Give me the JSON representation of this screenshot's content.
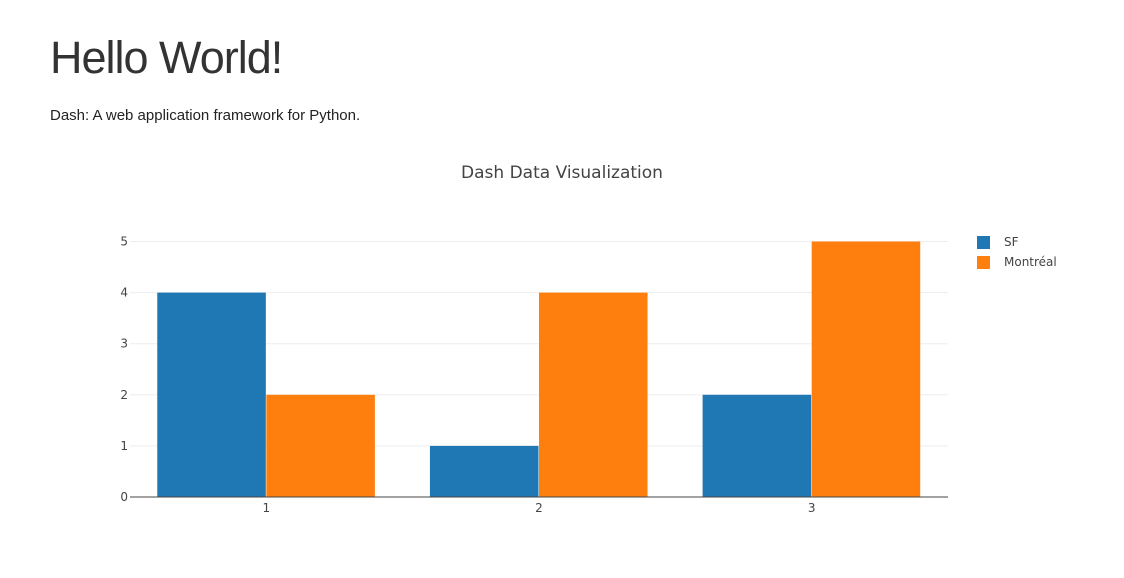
{
  "page": {
    "heading": "Hello World!",
    "subtitle": "Dash: A web application framework for Python."
  },
  "chart_data": {
    "type": "bar",
    "title": "Dash Data Visualization",
    "xlabel": "",
    "ylabel": "",
    "categories": [
      "1",
      "2",
      "3"
    ],
    "series": [
      {
        "name": "SF",
        "values": [
          4,
          1,
          2
        ],
        "color": "#1f77b4"
      },
      {
        "name": "Montréal",
        "values": [
          2,
          4,
          5
        ],
        "color": "#ff7f0e"
      }
    ],
    "yticks": [
      "0",
      "1",
      "2",
      "3",
      "4",
      "5"
    ],
    "ylim": [
      0,
      5
    ],
    "grid": true,
    "legend_position": "top-right"
  }
}
